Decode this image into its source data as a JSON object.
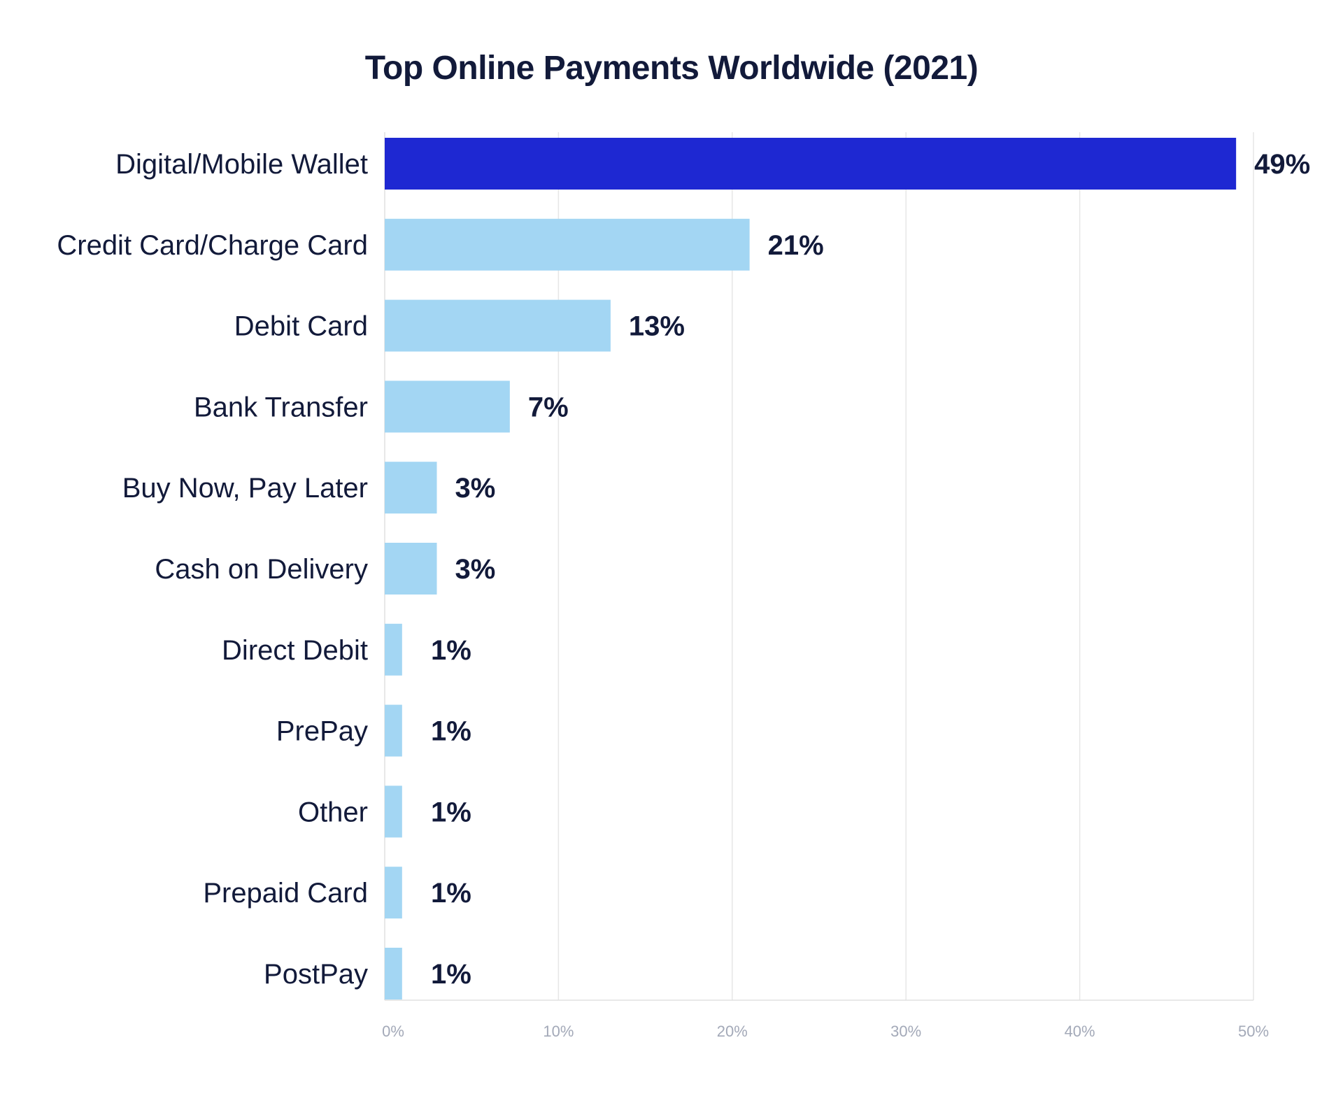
{
  "chart_data": {
    "type": "bar",
    "orientation": "horizontal",
    "title": "Top Online Payments Worldwide (2021)",
    "xlabel": "",
    "ylabel": "",
    "categories": [
      "Digital/Mobile Wallet",
      "Credit Card/Charge Card",
      "Debit Card",
      "Bank Transfer",
      "Buy Now, Pay Later",
      "Cash on Delivery",
      "Direct Debit",
      "PrePay",
      "Other",
      "Prepaid Card",
      "PostPay"
    ],
    "values": [
      49,
      21,
      13,
      7.2,
      3,
      3,
      1,
      1,
      1,
      1,
      1
    ],
    "data_labels": [
      "49%",
      "21%",
      "13%",
      "7%",
      "3%",
      "3%",
      "1%",
      "1%",
      "1%",
      "1%",
      "1%"
    ],
    "xlim": [
      0,
      50
    ],
    "x_ticks": [
      0,
      10,
      20,
      30,
      40,
      50
    ],
    "x_tick_labels": [
      "0%",
      "10%",
      "20%",
      "30%",
      "40%",
      "50%"
    ],
    "grid": "vertical",
    "legend": "none",
    "colors": {
      "highlight": "#1e28d2",
      "bar": "#a3d6f3",
      "grid": "#e6e6e6",
      "axis": "#e0e0e0",
      "text": "#121a3a",
      "tick_text": "#a3a9b8"
    },
    "highlight_index": 0
  }
}
